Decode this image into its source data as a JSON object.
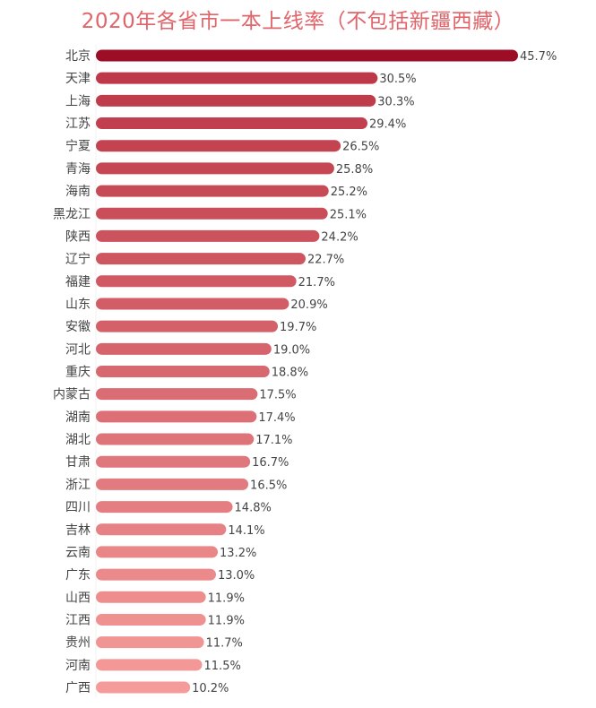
{
  "chart_data": {
    "type": "bar",
    "orientation": "horizontal",
    "title": "2020年各省市一本上线率（不包括新疆西藏）",
    "categories": [
      "北京",
      "天津",
      "上海",
      "江苏",
      "宁夏",
      "青海",
      "海南",
      "黑龙江",
      "陕西",
      "辽宁",
      "福建",
      "山东",
      "安徽",
      "河北",
      "重庆",
      "内蒙古",
      "湖南",
      "湖北",
      "甘肃",
      "浙江",
      "四川",
      "吉林",
      "云南",
      "广东",
      "山西",
      "江西",
      "贵州",
      "河南",
      "广西"
    ],
    "values": [
      45.7,
      30.5,
      30.3,
      29.4,
      26.5,
      25.8,
      25.2,
      25.1,
      24.2,
      22.7,
      21.7,
      20.9,
      19.7,
      19.0,
      18.8,
      17.5,
      17.4,
      17.1,
      16.7,
      16.5,
      14.8,
      14.1,
      13.2,
      13.0,
      11.9,
      11.9,
      11.7,
      11.5,
      10.2
    ],
    "value_labels": [
      "45.7%",
      "30.5%",
      "30.3%",
      "29.4%",
      "26.5%",
      "25.8%",
      "25.2%",
      "25.1%",
      "24.2%",
      "22.7%",
      "21.7%",
      "20.9%",
      "19.7%",
      "19.0%",
      "18.8%",
      "17.5%",
      "17.4%",
      "17.1%",
      "16.7%",
      "16.5%",
      "14.8%",
      "14.1%",
      "13.2%",
      "13.0%",
      "11.9%",
      "11.9%",
      "11.7%",
      "11.5%",
      "10.2%"
    ],
    "xlim": [
      0,
      45.7
    ],
    "grid": false,
    "legend": "none",
    "colors": {
      "top": "#9c0d26",
      "second": "#bd3848",
      "bottom": "#f59c9a",
      "title": "#e0646a",
      "label": "#444444"
    }
  }
}
